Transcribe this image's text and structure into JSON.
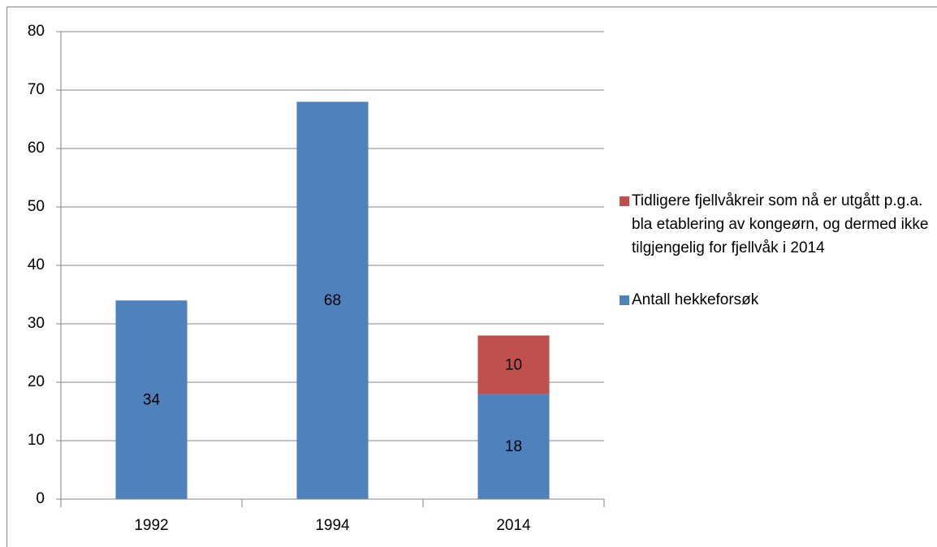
{
  "chart_data": {
    "type": "stacked_bar",
    "categories": [
      "1992",
      "1994",
      "2014"
    ],
    "series": [
      {
        "name": "Antall hekkeforsøk",
        "color": "#4f81bd",
        "values": [
          34,
          68,
          18
        ]
      },
      {
        "name": "Tidligere fjellvåkreir som nå er utgått p.g.a. bla etablering av kongeørn, og dermed ikke tilgjengelig for fjellvåk i 2014",
        "color": "#c0504d",
        "values": [
          null,
          null,
          10
        ]
      }
    ],
    "ylim": [
      0,
      80
    ],
    "yticks": [
      0,
      10,
      20,
      30,
      40,
      50,
      60,
      70,
      80
    ],
    "grid": true,
    "legend": "right"
  }
}
